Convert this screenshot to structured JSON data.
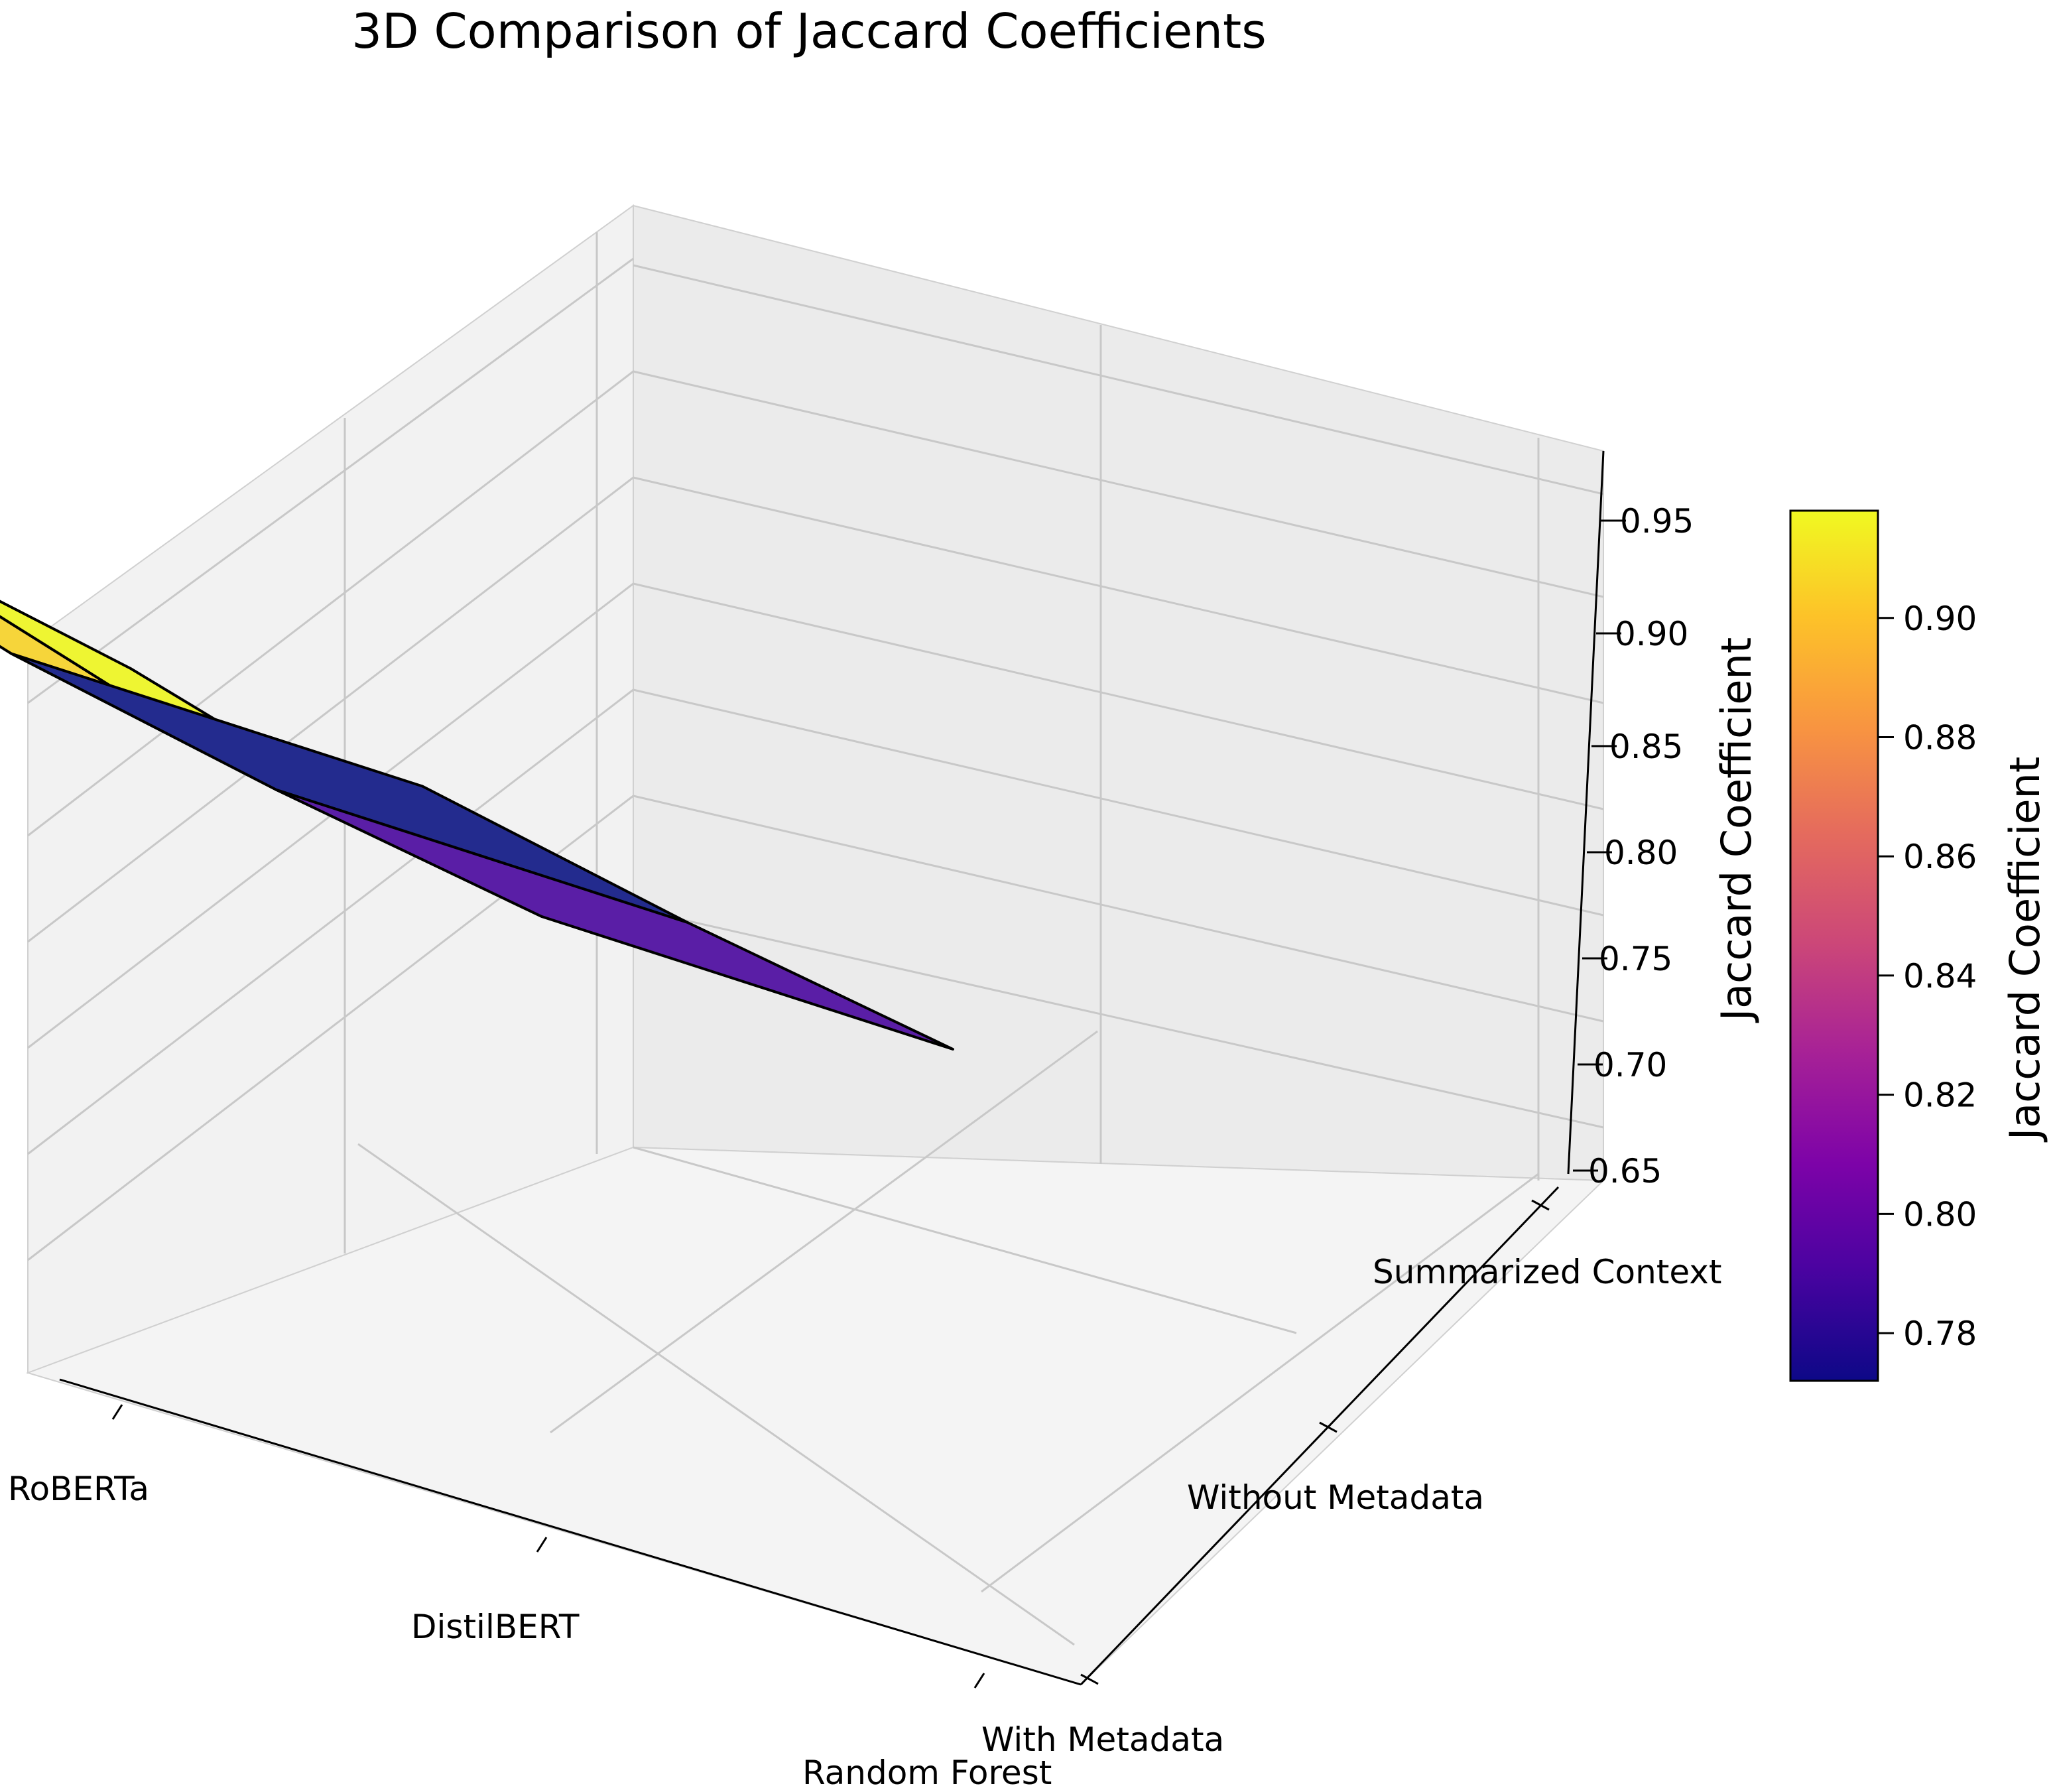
{
  "chart_data": {
    "type": "surface3d",
    "title": "3D Comparison of Jaccard Coefficients",
    "x_categories": [
      "RoBERTa",
      "DistilBERT",
      "Random Forest"
    ],
    "y_categories": [
      "With Metadata",
      "Without Metadata",
      "Summarized Context"
    ],
    "zlabel": "Jaccard Coefficient",
    "z_ticks": [
      "0.65",
      "0.70",
      "0.75",
      "0.80",
      "0.85",
      "0.90",
      "0.95"
    ],
    "grid": true,
    "values": [
      [
        0.92,
        0.91,
        0.9
      ],
      [
        0.8,
        0.78,
        0.77
      ],
      [
        0.8,
        0.78,
        0.77
      ]
    ],
    "colorbar": {
      "label": "Jaccard Coefficient",
      "colormap": "plasma",
      "range": [
        0.772,
        0.918
      ],
      "ticks": [
        "0.78",
        "0.80",
        "0.82",
        "0.84",
        "0.86",
        "0.88",
        "0.90"
      ]
    },
    "colors": {
      "yellow_top": "#eef532",
      "yellow_gold": "#f6d53a",
      "purple": "#5a1ea6",
      "navy": "#232b8e"
    }
  }
}
